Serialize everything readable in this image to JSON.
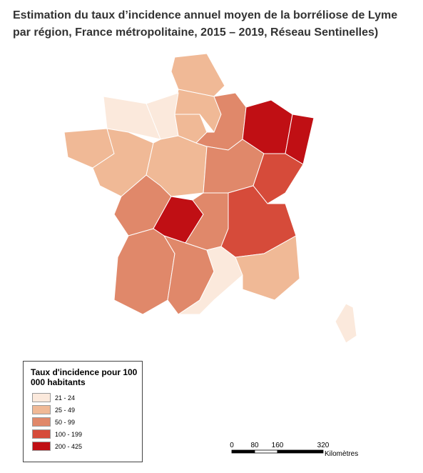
{
  "title": "Estimation du taux d’incidence annuel moyen de la borréliose de Lyme par région, France métropolitaine, 2015 – 2019, Réseau Sentinelles)",
  "legend": {
    "title": "Taux d'incidence pour 100 000 habitants",
    "items": [
      {
        "label": "21 - 24",
        "color": "#fbe9dc"
      },
      {
        "label": "25 - 49",
        "color": "#f0b996"
      },
      {
        "label": "50 - 99",
        "color": "#e0886a"
      },
      {
        "label": "100 - 199",
        "color": "#d64b3a"
      },
      {
        "label": "200 - 425",
        "color": "#c00f14"
      }
    ]
  },
  "scale_bar": {
    "ticks": [
      "0",
      "80",
      "160",
      "320"
    ],
    "unit": "Kilomètres"
  }
}
